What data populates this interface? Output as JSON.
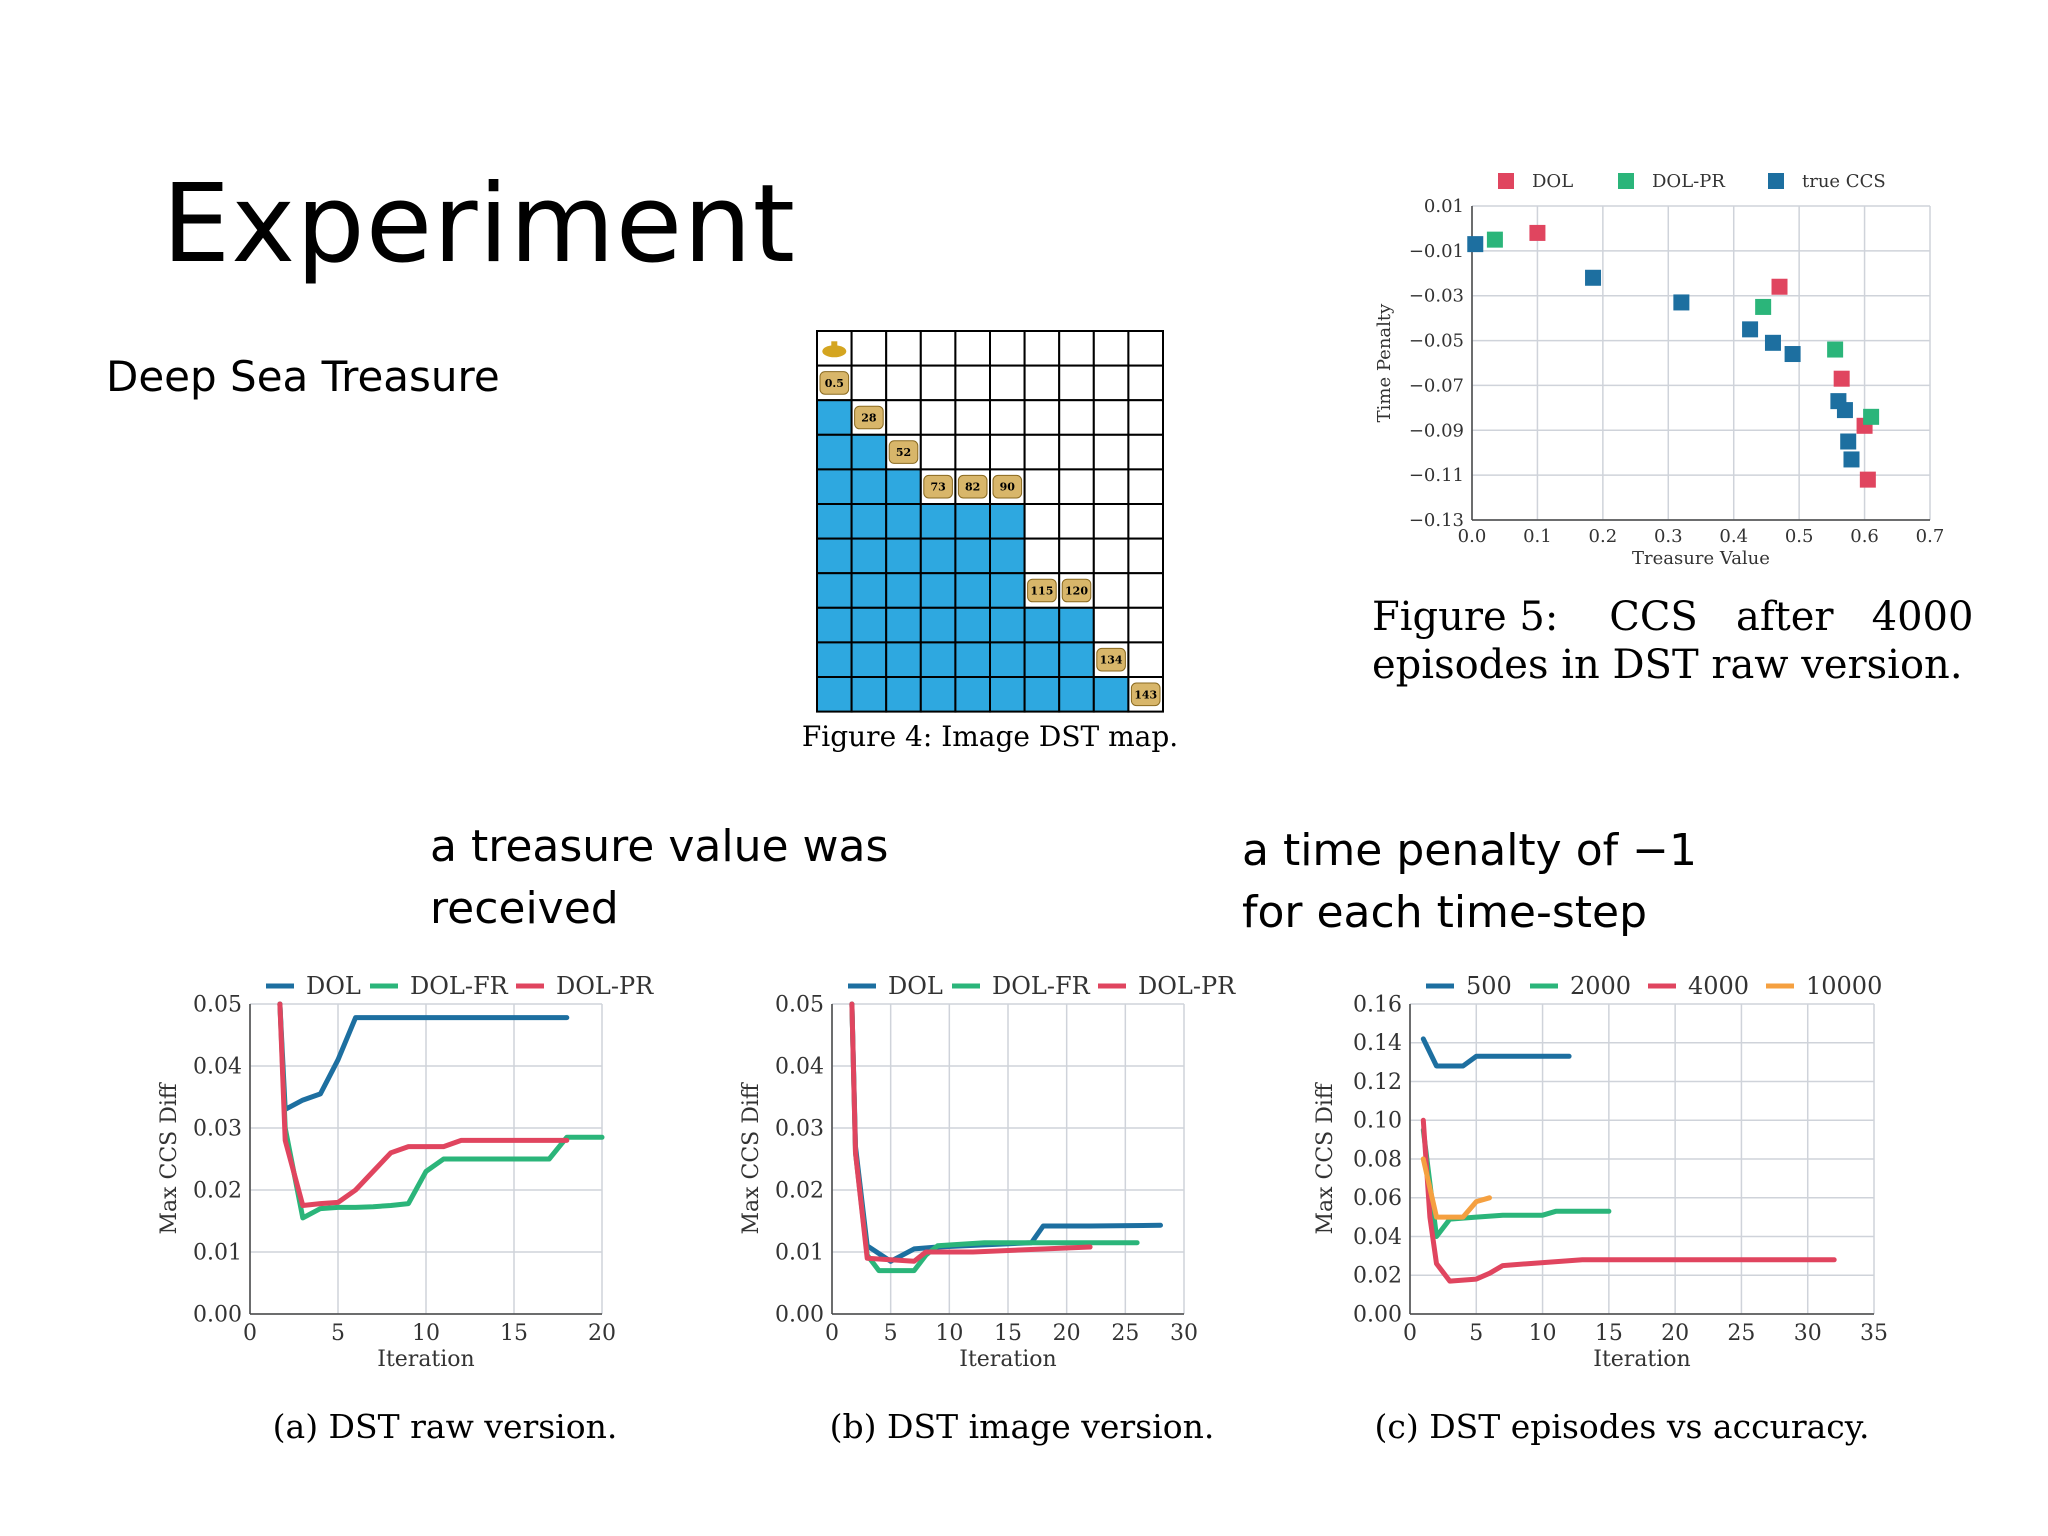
{
  "slide": {
    "title": "Experiment",
    "subtitle": "Deep Sea Treasure",
    "note_left": [
      "a treasure value was",
      "received"
    ],
    "note_right": [
      "a time penalty of −1",
      "for each time-step"
    ]
  },
  "map": {
    "caption": "Figure 4: Image DST map.",
    "rows": 11,
    "cols": 10,
    "submarine": "submarine-icon",
    "treasures": [
      {
        "row": 1,
        "col": 0,
        "label": "0.5"
      },
      {
        "row": 2,
        "col": 1,
        "label": "28"
      },
      {
        "row": 3,
        "col": 2,
        "label": "52"
      },
      {
        "row": 4,
        "col": 3,
        "label": "73"
      },
      {
        "row": 4,
        "col": 4,
        "label": "82"
      },
      {
        "row": 4,
        "col": 5,
        "label": "90"
      },
      {
        "row": 7,
        "col": 6,
        "label": "115"
      },
      {
        "row": 7,
        "col": 7,
        "label": "120"
      },
      {
        "row": 9,
        "col": 8,
        "label": "134"
      },
      {
        "row": 10,
        "col": 9,
        "label": "143"
      }
    ],
    "colors": {
      "sea": "#2ea8e0",
      "treasure": "#d8b66a"
    }
  },
  "chart_data": [
    {
      "id": "fig5",
      "type": "scatter",
      "caption": [
        "Figure 5:    CCS   after   4000",
        "episodes in DST raw version."
      ],
      "xlabel": "Treasure Value",
      "ylabel": "Time Penalty",
      "xlim": [
        0.0,
        0.7
      ],
      "ylim": [
        -0.13,
        0.01
      ],
      "xticks": [
        "0.0",
        "0.1",
        "0.2",
        "0.3",
        "0.4",
        "0.5",
        "0.6",
        "0.7"
      ],
      "yticks": [
        "0.01",
        "−0.01",
        "−0.03",
        "−0.05",
        "−0.07",
        "−0.09",
        "−0.11",
        "−0.13"
      ],
      "series": [
        {
          "name": "DOL",
          "color": "#e0455f",
          "points": [
            [
              0.1,
              -0.002
            ],
            [
              0.47,
              -0.026
            ],
            [
              0.565,
              -0.067
            ],
            [
              0.6,
              -0.088
            ],
            [
              0.605,
              -0.112
            ]
          ]
        },
        {
          "name": "DOL-PR",
          "color": "#2bb57a",
          "points": [
            [
              0.035,
              -0.005
            ],
            [
              0.445,
              -0.035
            ],
            [
              0.555,
              -0.054
            ],
            [
              0.61,
              -0.084
            ]
          ]
        },
        {
          "name": "true CCS",
          "color": "#1d6fa0",
          "points": [
            [
              0.005,
              -0.007
            ],
            [
              0.185,
              -0.022
            ],
            [
              0.32,
              -0.033
            ],
            [
              0.425,
              -0.045
            ],
            [
              0.46,
              -0.051
            ],
            [
              0.49,
              -0.056
            ],
            [
              0.56,
              -0.077
            ],
            [
              0.57,
              -0.081
            ],
            [
              0.575,
              -0.095
            ],
            [
              0.58,
              -0.103
            ]
          ]
        }
      ],
      "legend": "top"
    },
    {
      "id": "figa",
      "type": "line",
      "caption": "(a) DST raw version.",
      "xlabel": "Iteration",
      "ylabel": "Max CCS Diff",
      "xlim": [
        0,
        20
      ],
      "ylim": [
        0,
        0.05
      ],
      "xticks": [
        "0",
        "5",
        "10",
        "15",
        "20"
      ],
      "yticks": [
        "0.00",
        "0.01",
        "0.02",
        "0.03",
        "0.04",
        "0.05"
      ],
      "series": [
        {
          "name": "DOL",
          "color": "#1d6fa0",
          "points": [
            [
              1.7,
              0.05
            ],
            [
              2,
              0.033
            ],
            [
              3,
              0.0345
            ],
            [
              4,
              0.0355
            ],
            [
              5,
              0.041
            ],
            [
              6,
              0.0478
            ],
            [
              7,
              0.0478
            ],
            [
              18,
              0.0478
            ]
          ]
        },
        {
          "name": "DOL-FR",
          "color": "#2bb57a",
          "points": [
            [
              1.7,
              0.05
            ],
            [
              2,
              0.03
            ],
            [
              3,
              0.0155
            ],
            [
              4,
              0.017
            ],
            [
              5,
              0.0172
            ],
            [
              6,
              0.0172
            ],
            [
              7,
              0.0173
            ],
            [
              8,
              0.0175
            ],
            [
              9,
              0.0178
            ],
            [
              10,
              0.023
            ],
            [
              11,
              0.025
            ],
            [
              12,
              0.025
            ],
            [
              17,
              0.025
            ],
            [
              18,
              0.0285
            ],
            [
              20,
              0.0285
            ]
          ]
        },
        {
          "name": "DOL-PR",
          "color": "#e0455f",
          "points": [
            [
              1.7,
              0.05
            ],
            [
              2,
              0.028
            ],
            [
              3,
              0.0175
            ],
            [
              4,
              0.0178
            ],
            [
              5,
              0.018
            ],
            [
              6,
              0.02
            ],
            [
              7,
              0.023
            ],
            [
              8,
              0.026
            ],
            [
              9,
              0.027
            ],
            [
              11,
              0.027
            ],
            [
              12,
              0.028
            ],
            [
              18,
              0.028
            ]
          ]
        }
      ],
      "legend": "top"
    },
    {
      "id": "figb",
      "type": "line",
      "caption": "(b) DST image version.",
      "xlabel": "Iteration",
      "ylabel": "Max CCS Diff",
      "xlim": [
        0,
        30
      ],
      "ylim": [
        0,
        0.05
      ],
      "xticks": [
        "0",
        "5",
        "10",
        "15",
        "20",
        "25",
        "30"
      ],
      "yticks": [
        "0.00",
        "0.01",
        "0.02",
        "0.03",
        "0.04",
        "0.05"
      ],
      "series": [
        {
          "name": "DOL",
          "color": "#1d6fa0",
          "points": [
            [
              1.7,
              0.05
            ],
            [
              2,
              0.027
            ],
            [
              3,
              0.011
            ],
            [
              5,
              0.0085
            ],
            [
              7,
              0.0105
            ],
            [
              9,
              0.0108
            ],
            [
              17,
              0.0115
            ],
            [
              18,
              0.0142
            ],
            [
              22,
              0.0142
            ],
            [
              28,
              0.0143
            ]
          ]
        },
        {
          "name": "DOL-FR",
          "color": "#2bb57a",
          "points": [
            [
              1.7,
              0.05
            ],
            [
              2,
              0.026
            ],
            [
              3,
              0.0095
            ],
            [
              4,
              0.007
            ],
            [
              7,
              0.007
            ],
            [
              8,
              0.0095
            ],
            [
              9,
              0.011
            ],
            [
              13,
              0.0115
            ],
            [
              26,
              0.0115
            ]
          ]
        },
        {
          "name": "DOL-PR",
          "color": "#e0455f",
          "points": [
            [
              1.7,
              0.05
            ],
            [
              2,
              0.026
            ],
            [
              3,
              0.009
            ],
            [
              7,
              0.0085
            ],
            [
              8,
              0.01
            ],
            [
              12,
              0.01
            ],
            [
              22,
              0.0108
            ]
          ]
        }
      ],
      "legend": "top"
    },
    {
      "id": "figc",
      "type": "line",
      "caption": "(c) DST episodes vs accuracy.",
      "xlabel": "Iteration",
      "ylabel": "Max CCS Diff",
      "xlim": [
        0,
        35
      ],
      "ylim": [
        0,
        0.16
      ],
      "xticks": [
        "0",
        "5",
        "10",
        "15",
        "20",
        "25",
        "30",
        "35"
      ],
      "yticks": [
        "0.00",
        "0.02",
        "0.04",
        "0.06",
        "0.08",
        "0.10",
        "0.12",
        "0.14",
        "0.16"
      ],
      "series": [
        {
          "name": "500",
          "color": "#1d6fa0",
          "points": [
            [
              1,
              0.142
            ],
            [
              2,
              0.128
            ],
            [
              4,
              0.128
            ],
            [
              5,
              0.133
            ],
            [
              12,
              0.133
            ]
          ]
        },
        {
          "name": "2000",
          "color": "#2bb57a",
          "points": [
            [
              1,
              0.095
            ],
            [
              2,
              0.04
            ],
            [
              3,
              0.049
            ],
            [
              5,
              0.05
            ],
            [
              7,
              0.051
            ],
            [
              10,
              0.051
            ],
            [
              11,
              0.053
            ],
            [
              15,
              0.053
            ]
          ]
        },
        {
          "name": "4000",
          "color": "#e0455f",
          "points": [
            [
              1,
              0.1
            ],
            [
              1.5,
              0.05
            ],
            [
              2,
              0.026
            ],
            [
              3,
              0.017
            ],
            [
              5,
              0.018
            ],
            [
              6,
              0.021
            ],
            [
              7,
              0.025
            ],
            [
              9,
              0.026
            ],
            [
              13,
              0.028
            ],
            [
              32,
              0.028
            ]
          ]
        },
        {
          "name": "10000",
          "color": "#f5a040",
          "points": [
            [
              1,
              0.08
            ],
            [
              2,
              0.05
            ],
            [
              3,
              0.05
            ],
            [
              4,
              0.05
            ],
            [
              5,
              0.058
            ],
            [
              6,
              0.06
            ]
          ]
        }
      ],
      "legend": "top"
    }
  ]
}
